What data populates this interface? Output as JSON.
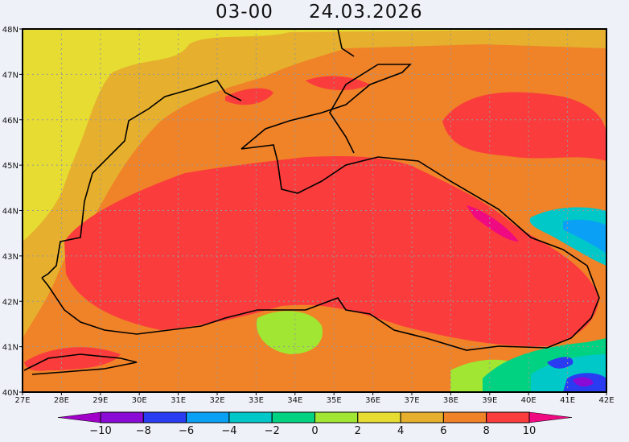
{
  "title": {
    "time": "03-00",
    "date": "24.03.2026"
  },
  "map": {
    "region": "Black Sea",
    "lon_range": [
      27,
      42
    ],
    "lat_range": [
      40,
      48
    ],
    "lon_labels": [
      "27E",
      "28E",
      "29E",
      "30E",
      "31E",
      "32E",
      "33E",
      "34E",
      "35E",
      "36E",
      "37E",
      "38E",
      "39E",
      "40E",
      "41E",
      "42E"
    ],
    "lat_labels": [
      "40N",
      "41N",
      "42N",
      "43N",
      "44N",
      "45N",
      "46N",
      "47N",
      "48N"
    ],
    "grid": true
  },
  "colorbar": {
    "levels": [
      -10,
      -8,
      -6,
      -4,
      -2,
      0,
      2,
      4,
      6,
      8,
      10
    ],
    "labels": [
      "−10",
      "−8",
      "−6",
      "−4",
      "−2",
      "0",
      "2",
      "4",
      "6",
      "8",
      "10"
    ],
    "colors": [
      "#8a0ad6",
      "#2a3cf2",
      "#0aa0f5",
      "#00c8c8",
      "#00d282",
      "#a0e632",
      "#e6dc32",
      "#e6af2d",
      "#f08228",
      "#fa3c3c"
    ],
    "under_color": "#a000c8",
    "over_color": "#f00a82"
  }
}
